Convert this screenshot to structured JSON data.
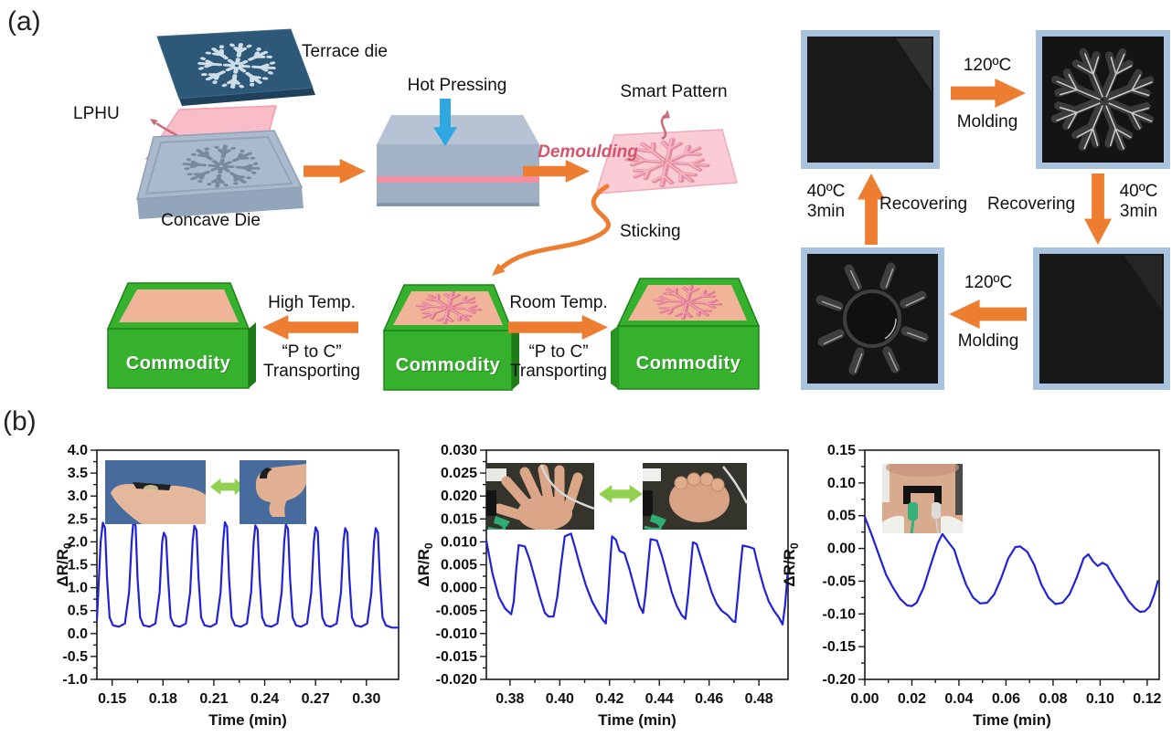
{
  "panel_a": {
    "label": "(a)",
    "terrace_die_label": "Terrace die",
    "lphu_label": "LPHU",
    "concave_die_label": "Concave Die",
    "hot_pressing_label": "Hot Pressing",
    "demoulding_label": "Demoulding",
    "smart_pattern_label": "Smart Pattern",
    "sticking_label": "Sticking",
    "commodity_label": "Commodity",
    "transport_left": {
      "line1": "High Temp.",
      "line2": "“P to C”",
      "line3": "Transporting"
    },
    "transport_right": {
      "line1": "Room Temp.",
      "line2": "“P to C”",
      "line3": "Transporting"
    },
    "cycle": {
      "top": {
        "temp": "120ºC",
        "action": "Molding"
      },
      "bottom": {
        "temp": "120ºC",
        "action": "Molding"
      },
      "left": {
        "temp": "40ºC",
        "time": "3min",
        "action": "Recovering"
      },
      "right": {
        "temp": "40ºC",
        "time": "3min",
        "action": "Recovering"
      }
    }
  },
  "panel_b": {
    "label": "(b)"
  },
  "colors": {
    "curve_blue": "#2121d8",
    "arrow_orange": "#ed7d31",
    "arrow_sky_blue": "#2fa8e1",
    "arrow_green": "#92d050",
    "commodity_green": "#35b12e",
    "demoulding_red": "#d4556b"
  },
  "chart_data": [
    {
      "type": "line",
      "name": "finger-bending-signal",
      "xlabel": "Time (min)",
      "ylabel_base": "ΔR/R",
      "ylabel_sub": "0",
      "xlim": [
        0.141,
        0.319
      ],
      "ylim": [
        -1.0,
        4.0
      ],
      "xticks": [
        0.15,
        0.18,
        0.21,
        0.24,
        0.27,
        0.3
      ],
      "xtick_labels": [
        "0.15",
        "0.18",
        "0.21",
        "0.24",
        "0.27",
        "0.30"
      ],
      "yticks": [
        4.0,
        3.5,
        3.0,
        2.5,
        2.0,
        1.5,
        1.0,
        0.5,
        0.0,
        -0.5,
        -1.0
      ],
      "ytick_labels": [
        "4.0",
        "3.5",
        "3.0",
        "2.5",
        "2.0",
        "1.5",
        "1.0",
        "0.5",
        "0.0",
        "-0.5",
        "-1.0"
      ],
      "grid": false,
      "legend": null,
      "line_color": "#2121d8",
      "inset_photos": [
        "finger-straight-photo",
        "finger-bent-photo"
      ],
      "points": [
        [
          0.141,
          0.3
        ],
        [
          0.1418,
          0.9
        ],
        [
          0.1432,
          2.0
        ],
        [
          0.1445,
          2.42
        ],
        [
          0.1458,
          2.3
        ],
        [
          0.147,
          1.2
        ],
        [
          0.1485,
          0.35
        ],
        [
          0.1505,
          0.18
        ],
        [
          0.154,
          0.15
        ],
        [
          0.1575,
          0.22
        ],
        [
          0.16,
          0.9
        ],
        [
          0.1615,
          2.0
        ],
        [
          0.1625,
          2.45
        ],
        [
          0.1638,
          2.35
        ],
        [
          0.165,
          1.2
        ],
        [
          0.1665,
          0.35
        ],
        [
          0.1685,
          0.18
        ],
        [
          0.172,
          0.15
        ],
        [
          0.1755,
          0.22
        ],
        [
          0.178,
          0.9
        ],
        [
          0.1795,
          2.0
        ],
        [
          0.1805,
          2.2
        ],
        [
          0.1818,
          2.1
        ],
        [
          0.183,
          1.2
        ],
        [
          0.1845,
          0.35
        ],
        [
          0.1865,
          0.18
        ],
        [
          0.19,
          0.15
        ],
        [
          0.1935,
          0.22
        ],
        [
          0.196,
          0.9
        ],
        [
          0.1975,
          2.0
        ],
        [
          0.1985,
          2.35
        ],
        [
          0.1998,
          2.25
        ],
        [
          0.201,
          1.2
        ],
        [
          0.2025,
          0.35
        ],
        [
          0.2045,
          0.18
        ],
        [
          0.208,
          0.15
        ],
        [
          0.2115,
          0.22
        ],
        [
          0.214,
          0.9
        ],
        [
          0.2155,
          2.0
        ],
        [
          0.2165,
          2.43
        ],
        [
          0.2178,
          2.33
        ],
        [
          0.219,
          1.2
        ],
        [
          0.2205,
          0.35
        ],
        [
          0.2225,
          0.18
        ],
        [
          0.226,
          0.15
        ],
        [
          0.2295,
          0.22
        ],
        [
          0.232,
          0.9
        ],
        [
          0.2335,
          2.0
        ],
        [
          0.2345,
          2.36
        ],
        [
          0.2358,
          2.26
        ],
        [
          0.237,
          1.2
        ],
        [
          0.2385,
          0.35
        ],
        [
          0.2405,
          0.18
        ],
        [
          0.244,
          0.15
        ],
        [
          0.2475,
          0.22
        ],
        [
          0.25,
          0.9
        ],
        [
          0.2515,
          2.0
        ],
        [
          0.2525,
          2.38
        ],
        [
          0.2538,
          2.28
        ],
        [
          0.255,
          1.2
        ],
        [
          0.2565,
          0.35
        ],
        [
          0.2585,
          0.18
        ],
        [
          0.2615,
          0.15
        ],
        [
          0.265,
          0.22
        ],
        [
          0.2675,
          0.9
        ],
        [
          0.269,
          2.0
        ],
        [
          0.27,
          2.32
        ],
        [
          0.2713,
          2.22
        ],
        [
          0.2725,
          1.2
        ],
        [
          0.274,
          0.35
        ],
        [
          0.276,
          0.18
        ],
        [
          0.279,
          0.15
        ],
        [
          0.2825,
          0.22
        ],
        [
          0.285,
          0.9
        ],
        [
          0.2865,
          2.0
        ],
        [
          0.2875,
          2.3
        ],
        [
          0.2888,
          2.2
        ],
        [
          0.29,
          1.2
        ],
        [
          0.2915,
          0.35
        ],
        [
          0.2935,
          0.18
        ],
        [
          0.297,
          0.15
        ],
        [
          0.3005,
          0.22
        ],
        [
          0.303,
          0.9
        ],
        [
          0.3045,
          2.0
        ],
        [
          0.3055,
          2.3
        ],
        [
          0.3068,
          2.2
        ],
        [
          0.308,
          1.2
        ],
        [
          0.3095,
          0.35
        ],
        [
          0.3115,
          0.18
        ],
        [
          0.315,
          0.13
        ],
        [
          0.319,
          0.13
        ]
      ]
    },
    {
      "type": "line",
      "name": "wrist-fist-signal",
      "xlabel": "Time (min)",
      "ylabel_base": "ΔR/R",
      "ylabel_sub": "0",
      "xlim": [
        0.3705,
        0.4917
      ],
      "ylim": [
        -0.02,
        0.03
      ],
      "xticks": [
        0.38,
        0.4,
        0.42,
        0.44,
        0.46,
        0.48
      ],
      "xtick_labels": [
        "0.38",
        "0.40",
        "0.42",
        "0.44",
        "0.46",
        "0.48"
      ],
      "yticks": [
        0.03,
        0.025,
        0.02,
        0.015,
        0.01,
        0.005,
        0.0,
        -0.005,
        -0.01,
        -0.015,
        -0.02
      ],
      "ytick_labels": [
        "0.030",
        "0.025",
        "0.020",
        "0.015",
        "0.010",
        "0.005",
        "0.000",
        "-0.005",
        "-0.010",
        "-0.015",
        "-0.020"
      ],
      "grid": false,
      "legend": null,
      "line_color": "#2121d8",
      "inset_photos": [
        "open-hand-photo",
        "fist-photo"
      ],
      "points": [
        [
          0.3705,
          0.0103
        ],
        [
          0.373,
          0.003
        ],
        [
          0.3755,
          -0.002
        ],
        [
          0.378,
          -0.0045
        ],
        [
          0.3805,
          -0.0058
        ],
        [
          0.3815,
          -0.003
        ],
        [
          0.3825,
          0.004
        ],
        [
          0.3835,
          0.0093
        ],
        [
          0.386,
          0.009
        ],
        [
          0.388,
          0.006
        ],
        [
          0.39,
          0.002
        ],
        [
          0.392,
          -0.002
        ],
        [
          0.394,
          -0.0055
        ],
        [
          0.3955,
          -0.0063
        ],
        [
          0.3975,
          -0.0063
        ],
        [
          0.399,
          -0.002
        ],
        [
          0.4005,
          0.005
        ],
        [
          0.402,
          0.0112
        ],
        [
          0.4045,
          0.0118
        ],
        [
          0.406,
          0.009
        ],
        [
          0.408,
          0.005
        ],
        [
          0.4105,
          0.0005
        ],
        [
          0.413,
          -0.003
        ],
        [
          0.4155,
          -0.0055
        ],
        [
          0.4175,
          -0.0072
        ],
        [
          0.4185,
          -0.0078
        ],
        [
          0.4195,
          -0.001
        ],
        [
          0.4203,
          0.006
        ],
        [
          0.421,
          0.0112
        ],
        [
          0.4225,
          0.0105
        ],
        [
          0.424,
          0.008
        ],
        [
          0.426,
          0.0075
        ],
        [
          0.428,
          0.004
        ],
        [
          0.43,
          0.0
        ],
        [
          0.432,
          -0.004
        ],
        [
          0.4335,
          -0.0055
        ],
        [
          0.4345,
          -0.001
        ],
        [
          0.4355,
          0.005
        ],
        [
          0.4365,
          0.0106
        ],
        [
          0.439,
          0.0103
        ],
        [
          0.441,
          0.007
        ],
        [
          0.443,
          0.003
        ],
        [
          0.445,
          -0.001
        ],
        [
          0.447,
          -0.004
        ],
        [
          0.449,
          -0.006
        ],
        [
          0.4505,
          -0.0068
        ],
        [
          0.4515,
          -0.002
        ],
        [
          0.4525,
          0.004
        ],
        [
          0.4535,
          0.0099
        ],
        [
          0.455,
          0.0095
        ],
        [
          0.457,
          0.006
        ],
        [
          0.459,
          0.0025
        ],
        [
          0.461,
          -0.001
        ],
        [
          0.463,
          -0.0035
        ],
        [
          0.465,
          -0.005
        ],
        [
          0.4675,
          -0.006
        ],
        [
          0.4695,
          -0.0073
        ],
        [
          0.4705,
          -0.0075
        ],
        [
          0.4715,
          -0.002
        ],
        [
          0.4725,
          0.004
        ],
        [
          0.4735,
          0.0092
        ],
        [
          0.476,
          0.0089
        ],
        [
          0.478,
          0.0085
        ],
        [
          0.48,
          0.004
        ],
        [
          0.482,
          0.0
        ],
        [
          0.484,
          -0.003
        ],
        [
          0.486,
          -0.005
        ],
        [
          0.488,
          -0.0065
        ],
        [
          0.4895,
          -0.008
        ],
        [
          0.4905,
          -0.004
        ],
        [
          0.4915,
          0.003
        ]
      ]
    },
    {
      "type": "line",
      "name": "throat-signal",
      "xlabel": "Time (min)",
      "ylabel_base": "ΔR/R",
      "ylabel_sub": "0",
      "xlim": [
        0.0,
        0.1251
      ],
      "ylim": [
        -0.2,
        0.15
      ],
      "xticks": [
        0.0,
        0.02,
        0.04,
        0.06,
        0.08,
        0.1,
        0.12
      ],
      "xtick_labels": [
        "0.00",
        "0.02",
        "0.04",
        "0.06",
        "0.08",
        "0.10",
        "0.12"
      ],
      "yticks": [
        0.15,
        0.1,
        0.05,
        0.0,
        -0.05,
        -0.1,
        -0.15,
        -0.2
      ],
      "ytick_labels": [
        "0.15",
        "0.10",
        "0.05",
        "0.00",
        "-0.05",
        "-0.10",
        "-0.15",
        "-0.20"
      ],
      "grid": false,
      "legend": null,
      "line_color": "#2121d8",
      "inset_photos": [
        "throat-sensor-photo"
      ],
      "points": [
        [
          0.0,
          0.048
        ],
        [
          0.003,
          0.02
        ],
        [
          0.006,
          -0.01
        ],
        [
          0.009,
          -0.04
        ],
        [
          0.012,
          -0.06
        ],
        [
          0.015,
          -0.077
        ],
        [
          0.018,
          -0.087
        ],
        [
          0.02,
          -0.088
        ],
        [
          0.022,
          -0.083
        ],
        [
          0.025,
          -0.06
        ],
        [
          0.028,
          -0.025
        ],
        [
          0.031,
          0.008
        ],
        [
          0.033,
          0.022
        ],
        [
          0.035,
          0.012
        ],
        [
          0.038,
          -0.002
        ],
        [
          0.04,
          -0.025
        ],
        [
          0.043,
          -0.055
        ],
        [
          0.046,
          -0.075
        ],
        [
          0.049,
          -0.084
        ],
        [
          0.052,
          -0.083
        ],
        [
          0.055,
          -0.07
        ],
        [
          0.058,
          -0.045
        ],
        [
          0.061,
          -0.015
        ],
        [
          0.064,
          0.002
        ],
        [
          0.066,
          0.003
        ],
        [
          0.069,
          -0.005
        ],
        [
          0.072,
          -0.025
        ],
        [
          0.075,
          -0.055
        ],
        [
          0.078,
          -0.075
        ],
        [
          0.081,
          -0.085
        ],
        [
          0.084,
          -0.083
        ],
        [
          0.087,
          -0.07
        ],
        [
          0.09,
          -0.045
        ],
        [
          0.093,
          -0.015
        ],
        [
          0.095,
          -0.009
        ],
        [
          0.097,
          -0.02
        ],
        [
          0.099,
          -0.027
        ],
        [
          0.101,
          -0.022
        ],
        [
          0.103,
          -0.026
        ],
        [
          0.106,
          -0.045
        ],
        [
          0.109,
          -0.062
        ],
        [
          0.112,
          -0.08
        ],
        [
          0.115,
          -0.092
        ],
        [
          0.117,
          -0.097
        ],
        [
          0.119,
          -0.096
        ],
        [
          0.121,
          -0.089
        ],
        [
          0.123,
          -0.07
        ],
        [
          0.1245,
          -0.05
        ]
      ]
    }
  ]
}
